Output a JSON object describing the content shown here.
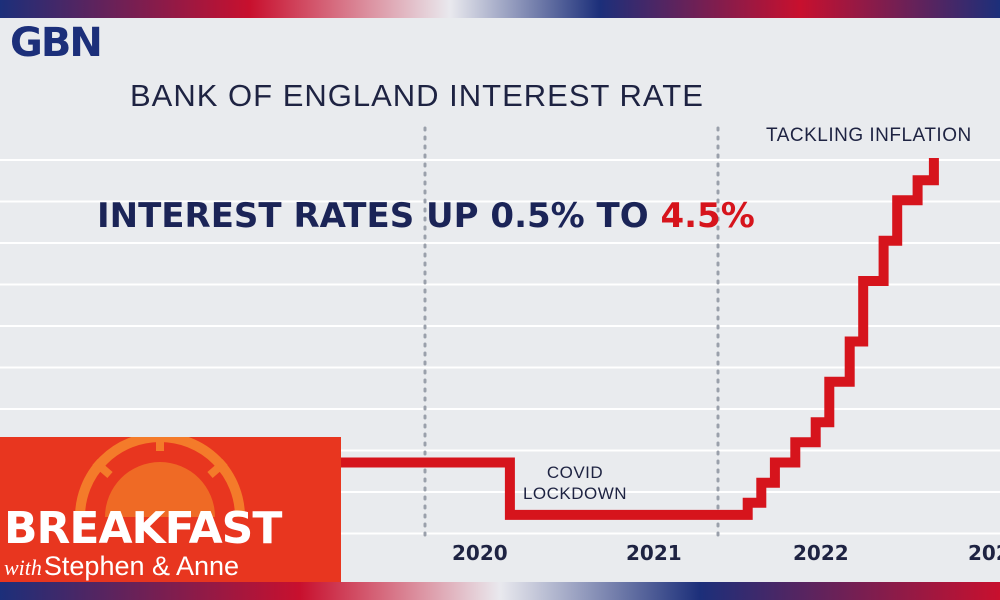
{
  "logo": {
    "text": "GBN"
  },
  "headline": {
    "prefix": "INTEREST RATES UP 0.5% TO ",
    "highlight": "4.5%"
  },
  "show": {
    "title": "BREAKFAST",
    "with": "with",
    "hosts": "Stephen & Anne"
  },
  "colors": {
    "line": "#d6141c",
    "highlight": "#d6141c",
    "show_bg": "#e8361f",
    "navy": "#1b2457"
  },
  "chart_data": {
    "type": "line",
    "title": "BANK OF ENGLAND INTEREST RATE",
    "x_tick_labels": [
      "2020",
      "2021",
      "2022",
      "202"
    ],
    "annotations": {
      "tackling": "TACKLING INFLATION",
      "covid_line1": "COVID",
      "covid_line2": "LOCKDOWN"
    },
    "grid": true,
    "step": true,
    "series": [
      {
        "x": [
          2019.0,
          2020.2,
          2020.25,
          2021.95,
          2022.0,
          2022.1,
          2022.2,
          2022.35,
          2022.5,
          2022.6,
          2022.75,
          2022.85,
          2023.0,
          2023.1,
          2023.25,
          2023.37
        ],
        "y": [
          0.75,
          0.75,
          0.1,
          0.1,
          0.25,
          0.5,
          0.75,
          1.0,
          1.25,
          1.75,
          2.25,
          3.0,
          3.5,
          4.0,
          4.25,
          4.5
        ]
      }
    ],
    "xlim": [
      2019.0,
      2023.4
    ],
    "ylim": [
      0,
      4.5
    ]
  }
}
